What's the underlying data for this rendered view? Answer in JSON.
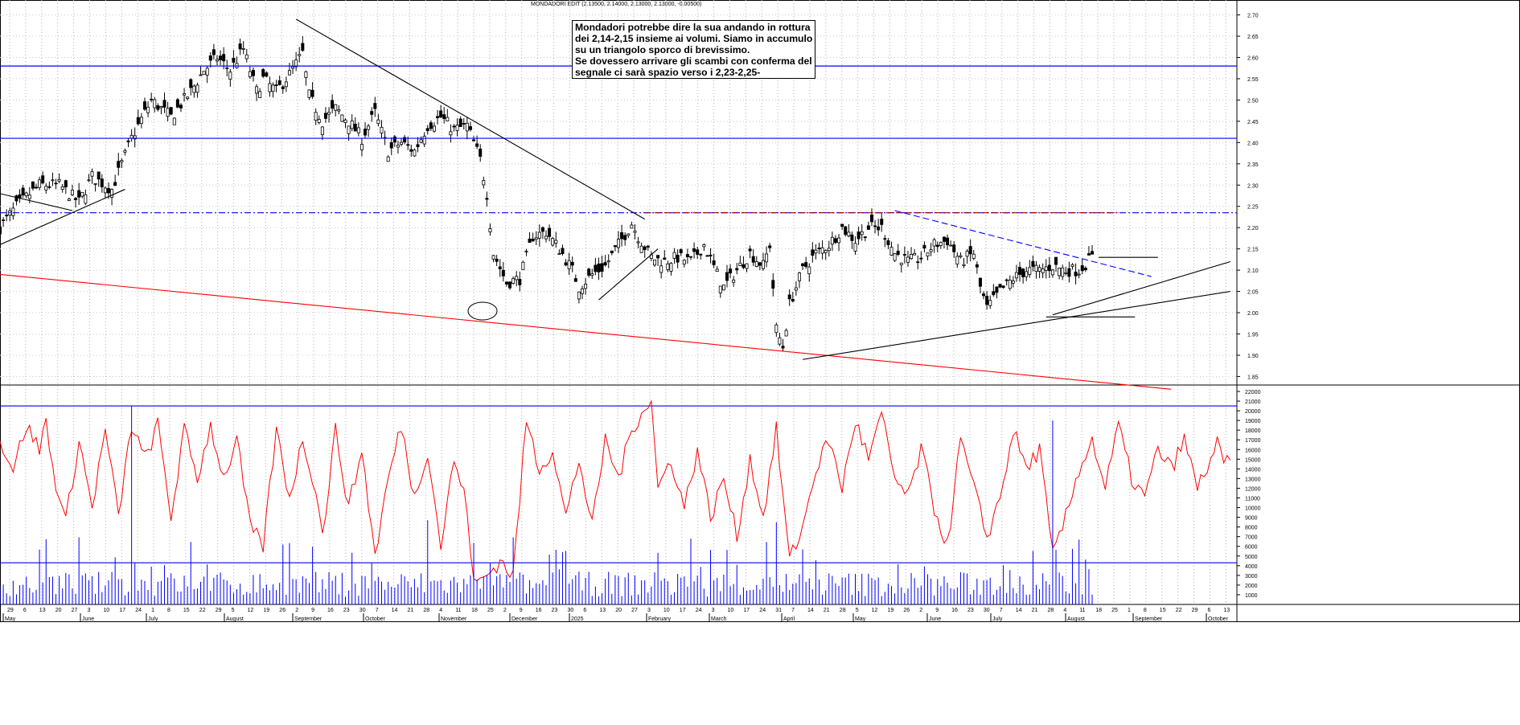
{
  "header": {
    "ticker_line": "MONDADORI EDIT (2.13500, 2.14000, 2.13000, 2.13000, -0.00500)"
  },
  "annotation": {
    "lines": [
      "Mondadori potrebbe dire la sua andando in rottura",
      "dei 2,14-2,15 insieme ai volumi. Siamo in accumulo",
      "su un triangolo sporco di brevissimo.",
      "Se dovessero arrivare gli scambi con conferma del",
      "segnale ci sarà spazio verso i 2,23-2,25-"
    ]
  },
  "colors": {
    "price": "#000000",
    "oscillator": "#ff0000",
    "volume": "#0000ff",
    "support_resistance": "#0000ff",
    "long_trend": "#ff0000",
    "resistance_dashed": "#990000"
  },
  "chart_data": [
    {
      "type": "candlestick",
      "ylim": [
        1.83,
        2.72
      ],
      "y_ticks": [
        "2.70",
        "2.65",
        "2.60",
        "2.55",
        "2.50",
        "2.45",
        "2.40",
        "2.35",
        "2.30",
        "2.25",
        "2.20",
        "2.15",
        "2.10",
        "2.05",
        "2.00",
        "1.95",
        "1.90",
        "1.85"
      ],
      "horizontal_levels": [
        2.58,
        2.41,
        2.235
      ],
      "price_path": [
        [
          0,
          2.2
        ],
        [
          5,
          2.25
        ],
        [
          12,
          2.3
        ],
        [
          18,
          2.3
        ],
        [
          24,
          2.26
        ],
        [
          28,
          2.32
        ],
        [
          34,
          2.29
        ],
        [
          40,
          2.41
        ],
        [
          46,
          2.5
        ],
        [
          52,
          2.46
        ],
        [
          58,
          2.52
        ],
        [
          62,
          2.57
        ],
        [
          66,
          2.6
        ],
        [
          70,
          2.57
        ],
        [
          74,
          2.62
        ],
        [
          78,
          2.52
        ],
        [
          80,
          2.55
        ],
        [
          84,
          2.52
        ],
        [
          88,
          2.56
        ],
        [
          92,
          2.61
        ],
        [
          94,
          2.51
        ],
        [
          98,
          2.45
        ],
        [
          102,
          2.48
        ],
        [
          106,
          2.45
        ],
        [
          110,
          2.41
        ],
        [
          114,
          2.47
        ],
        [
          118,
          2.38
        ],
        [
          122,
          2.4
        ],
        [
          126,
          2.38
        ],
        [
          130,
          2.44
        ],
        [
          134,
          2.46
        ],
        [
          138,
          2.43
        ],
        [
          142,
          2.44
        ],
        [
          146,
          2.36
        ],
        [
          148,
          2.28
        ],
        [
          150,
          2.14
        ],
        [
          154,
          2.07
        ],
        [
          158,
          2.08
        ],
        [
          162,
          2.18
        ],
        [
          166,
          2.19
        ],
        [
          170,
          2.15
        ],
        [
          174,
          2.1
        ],
        [
          176,
          2.06
        ],
        [
          180,
          2.09
        ],
        [
          184,
          2.11
        ],
        [
          188,
          2.16
        ],
        [
          192,
          2.21
        ],
        [
          194,
          2.18
        ],
        [
          198,
          2.13
        ],
        [
          202,
          2.12
        ],
        [
          206,
          2.13
        ],
        [
          210,
          2.12
        ],
        [
          214,
          2.16
        ],
        [
          218,
          2.09
        ],
        [
          220,
          2.06
        ],
        [
          224,
          2.1
        ],
        [
          228,
          2.14
        ],
        [
          232,
          2.11
        ],
        [
          234,
          2.16
        ],
        [
          236,
          1.96
        ],
        [
          238,
          1.92
        ],
        [
          240,
          2.02
        ],
        [
          244,
          2.1
        ],
        [
          248,
          2.14
        ],
        [
          252,
          2.16
        ],
        [
          256,
          2.2
        ],
        [
          260,
          2.17
        ],
        [
          264,
          2.2
        ],
        [
          268,
          2.2
        ],
        [
          272,
          2.14
        ],
        [
          276,
          2.12
        ],
        [
          280,
          2.13
        ],
        [
          284,
          2.16
        ],
        [
          288,
          2.17
        ],
        [
          292,
          2.12
        ],
        [
          296,
          2.14
        ],
        [
          298,
          2.06
        ],
        [
          300,
          2.01
        ],
        [
          304,
          2.05
        ],
        [
          308,
          2.08
        ],
        [
          312,
          2.1
        ],
        [
          316,
          2.1
        ],
        [
          320,
          2.11
        ],
        [
          324,
          2.1
        ],
        [
          328,
          2.1
        ],
        [
          332,
          2.13
        ]
      ],
      "trendlines": [
        {
          "color": "#000000",
          "from": [
            0,
            2.16
          ],
          "to": [
            38,
            2.29
          ]
        },
        {
          "color": "#000000",
          "from": [
            0,
            2.28
          ],
          "to": [
            22,
            2.24
          ]
        },
        {
          "color": "#000000",
          "from": [
            90,
            2.69
          ],
          "to": [
            196,
            2.22
          ]
        },
        {
          "color": "#000000",
          "from": [
            182,
            2.03
          ],
          "to": [
            200,
            2.15
          ]
        },
        {
          "color": "#ff0000",
          "from": [
            0,
            2.09
          ],
          "to": [
            356,
            1.82
          ]
        },
        {
          "color": "#990000",
          "from": [
            196,
            2.235
          ],
          "to": [
            340,
            2.235
          ]
        },
        {
          "color": "#000000",
          "from": [
            244,
            1.89
          ],
          "to": [
            374,
            2.05
          ]
        },
        {
          "color": "#000000",
          "from": [
            320,
            1.995
          ],
          "to": [
            374,
            2.12
          ]
        },
        {
          "color": "#000000",
          "from": [
            318,
            1.99
          ],
          "to": [
            345,
            1.99
          ]
        },
        {
          "color": "#000000",
          "from": [
            334,
            2.13
          ],
          "to": [
            352,
            2.13
          ]
        },
        {
          "color": "#0000ff",
          "from": [
            272,
            2.24
          ],
          "to": [
            350,
            2.085
          ]
        }
      ]
    },
    {
      "type": "line+bar",
      "ylim": [
        0,
        22000
      ],
      "y_ticks": [
        "22000",
        "21000",
        "20000",
        "19000",
        "18000",
        "17000",
        "16000",
        "15000",
        "14000",
        "13000",
        "12000",
        "11000",
        "10000",
        "9000",
        "8000",
        "7000",
        "6000",
        "5000",
        "4000",
        "3000",
        "2000",
        "1000"
      ],
      "horizontal_levels": [
        20500,
        4300
      ],
      "oscillator_path": [
        [
          0,
          17000
        ],
        [
          4,
          14000
        ],
        [
          8,
          18500
        ],
        [
          12,
          16000
        ],
        [
          14,
          19000
        ],
        [
          16,
          14000
        ],
        [
          20,
          8500
        ],
        [
          24,
          17000
        ],
        [
          28,
          10000
        ],
        [
          32,
          18000
        ],
        [
          36,
          9000
        ],
        [
          40,
          18500
        ],
        [
          44,
          15000
        ],
        [
          48,
          18500
        ],
        [
          52,
          9000
        ],
        [
          56,
          18000
        ],
        [
          60,
          13000
        ],
        [
          64,
          18500
        ],
        [
          68,
          13000
        ],
        [
          72,
          17000
        ],
        [
          76,
          8000
        ],
        [
          80,
          6000
        ],
        [
          84,
          18000
        ],
        [
          88,
          11000
        ],
        [
          92,
          17000
        ],
        [
          96,
          12000
        ],
        [
          98,
          7000
        ],
        [
          102,
          18000
        ],
        [
          106,
          10000
        ],
        [
          110,
          16000
        ],
        [
          114,
          5000
        ],
        [
          118,
          13000
        ],
        [
          122,
          18500
        ],
        [
          126,
          11000
        ],
        [
          130,
          16000
        ],
        [
          134,
          6000
        ],
        [
          138,
          15000
        ],
        [
          142,
          10000
        ],
        [
          144,
          2000
        ],
        [
          148,
          3000
        ],
        [
          152,
          4500
        ],
        [
          156,
          3000
        ],
        [
          160,
          19000
        ],
        [
          164,
          14000
        ],
        [
          168,
          16000
        ],
        [
          172,
          9000
        ],
        [
          176,
          15000
        ],
        [
          180,
          8000
        ],
        [
          184,
          17000
        ],
        [
          188,
          13000
        ],
        [
          192,
          18000
        ],
        [
          196,
          20500
        ],
        [
          198,
          21000
        ],
        [
          200,
          12000
        ],
        [
          204,
          15000
        ],
        [
          208,
          10000
        ],
        [
          212,
          16000
        ],
        [
          216,
          9000
        ],
        [
          220,
          13000
        ],
        [
          224,
          7000
        ],
        [
          228,
          15000
        ],
        [
          232,
          9000
        ],
        [
          236,
          18000
        ],
        [
          240,
          4500
        ],
        [
          244,
          8000
        ],
        [
          248,
          14000
        ],
        [
          252,
          17000
        ],
        [
          256,
          12000
        ],
        [
          260,
          19000
        ],
        [
          264,
          15000
        ],
        [
          268,
          19500
        ],
        [
          272,
          13000
        ],
        [
          276,
          11000
        ],
        [
          280,
          16000
        ],
        [
          284,
          10000
        ],
        [
          288,
          6000
        ],
        [
          292,
          17000
        ],
        [
          296,
          12000
        ],
        [
          300,
          7000
        ],
        [
          304,
          11000
        ],
        [
          308,
          18000
        ],
        [
          312,
          14000
        ],
        [
          316,
          16000
        ],
        [
          320,
          5000
        ],
        [
          324,
          9000
        ],
        [
          328,
          14000
        ],
        [
          332,
          17000
        ],
        [
          336,
          12000
        ],
        [
          340,
          18500
        ],
        [
          344,
          13000
        ],
        [
          348,
          11000
        ],
        [
          352,
          16000
        ],
        [
          356,
          14000
        ],
        [
          360,
          17000
        ],
        [
          364,
          12000
        ],
        [
          368,
          15000
        ],
        [
          370,
          16500
        ],
        [
          372,
          14500
        ],
        [
          374,
          14800
        ]
      ],
      "volume_peaks": [
        [
          40,
          20500
        ],
        [
          130,
          8700
        ],
        [
          236,
          8500
        ],
        [
          320,
          19000
        ],
        [
          356,
          8500
        ]
      ]
    }
  ],
  "x_axis": {
    "months": [
      "May",
      "June",
      "July",
      "August",
      "September",
      "October",
      "November",
      "December",
      "2025",
      "February",
      "March",
      "April",
      "May",
      "June",
      "July",
      "August",
      "September",
      "October"
    ],
    "day_ticks": [
      "29",
      "6",
      "13",
      "20",
      "27",
      "3",
      "10",
      "17",
      "24",
      "1",
      "8",
      "15",
      "22",
      "29",
      "5",
      "12",
      "19",
      "26",
      "2",
      "9",
      "16",
      "23",
      "30",
      "7",
      "14",
      "21",
      "28",
      "4",
      "11",
      "18",
      "25",
      "2",
      "9",
      "16",
      "23",
      "30",
      "6",
      "13",
      "20",
      "27",
      "3",
      "10",
      "17",
      "24",
      "3",
      "10",
      "17",
      "24",
      "31",
      "7",
      "14",
      "21",
      "28",
      "5",
      "12",
      "19",
      "26",
      "2",
      "9",
      "16",
      "23",
      "30",
      "7",
      "14",
      "21",
      "28",
      "4",
      "11",
      "18",
      "25",
      "1",
      "8",
      "15",
      "22",
      "29",
      "6",
      "13"
    ]
  }
}
